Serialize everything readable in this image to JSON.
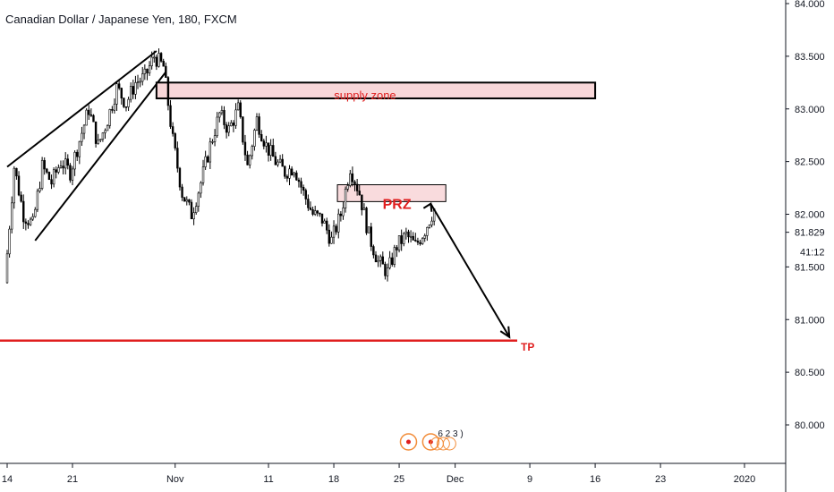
{
  "header": {
    "title": "Canadian Dollar / Japanese Yen, 180, FXCM"
  },
  "colors": {
    "up": "#ffffff",
    "down": "#000000",
    "candle_border": "#000000",
    "zone_fill": "#f8d7d9",
    "annotation_red": "#e01e1e",
    "axis": "#131722"
  },
  "chart_data": {
    "type": "candlestick",
    "title": "Canadian Dollar / Japanese Yen, 180, FXCM",
    "ylim": [
      79.7,
      84.05
    ],
    "y_ticks": [
      {
        "value": 84.0,
        "label": "84.000"
      },
      {
        "value": 83.5,
        "label": "83.500"
      },
      {
        "value": 83.0,
        "label": "83.000"
      },
      {
        "value": 82.5,
        "label": "82.500"
      },
      {
        "value": 82.0,
        "label": "82.000"
      },
      {
        "value": 81.5,
        "label": "81.500"
      },
      {
        "value": 81.0,
        "label": "81.000"
      },
      {
        "value": 80.5,
        "label": "80.500"
      },
      {
        "value": 80.0,
        "label": "80.000"
      }
    ],
    "x_ticks": [
      {
        "label": "14",
        "date": "2019-10-14"
      },
      {
        "label": "21",
        "date": "2019-10-21"
      },
      {
        "label": "Nov",
        "date": "2019-11-01"
      },
      {
        "label": "11",
        "date": "2019-11-11"
      },
      {
        "label": "18",
        "date": "2019-11-18"
      },
      {
        "label": "25",
        "date": "2019-11-25"
      },
      {
        "label": "Dec",
        "date": "2019-12-01"
      },
      {
        "label": "9",
        "date": "2019-12-09"
      },
      {
        "label": "16",
        "date": "2019-12-16"
      },
      {
        "label": "23",
        "date": "2019-12-23"
      },
      {
        "label": "2020",
        "date": "2020-01-01"
      }
    ],
    "price_path": [
      [
        "2019-10-14",
        81.35
      ],
      [
        "2019-10-15",
        82.45
      ],
      [
        "2019-10-16",
        82.0
      ],
      [
        "2019-10-17",
        81.9
      ],
      [
        "2019-10-18",
        82.45
      ],
      [
        "2019-10-19",
        82.3
      ],
      [
        "2019-10-20",
        82.5
      ],
      [
        "2019-10-21",
        82.4
      ],
      [
        "2019-10-22",
        82.7
      ],
      [
        "2019-10-23",
        83.0
      ],
      [
        "2019-10-24",
        82.65
      ],
      [
        "2019-10-25",
        82.9
      ],
      [
        "2019-10-26",
        83.2
      ],
      [
        "2019-10-27",
        83.05
      ],
      [
        "2019-10-28",
        83.25
      ],
      [
        "2019-10-29",
        83.3
      ],
      [
        "2019-10-30",
        83.5
      ],
      [
        "2019-10-31",
        83.4
      ],
      [
        "2019-11-01",
        82.7
      ],
      [
        "2019-11-02",
        82.2
      ],
      [
        "2019-11-03",
        82.0
      ],
      [
        "2019-11-04",
        82.3
      ],
      [
        "2019-11-05",
        82.65
      ],
      [
        "2019-11-06",
        82.95
      ],
      [
        "2019-11-07",
        82.8
      ],
      [
        "2019-11-08",
        83.0
      ],
      [
        "2019-11-09",
        82.45
      ],
      [
        "2019-11-10",
        82.9
      ],
      [
        "2019-11-11",
        82.65
      ],
      [
        "2019-11-12",
        82.5
      ],
      [
        "2019-11-13",
        82.4
      ],
      [
        "2019-11-14",
        82.45
      ],
      [
        "2019-11-15",
        82.2
      ],
      [
        "2019-11-16",
        82.0
      ],
      [
        "2019-11-17",
        81.95
      ],
      [
        "2019-11-18",
        81.75
      ],
      [
        "2019-11-19",
        82.0
      ],
      [
        "2019-11-20",
        82.45
      ],
      [
        "2019-11-21",
        82.2
      ],
      [
        "2019-11-22",
        81.8
      ],
      [
        "2019-11-23",
        81.55
      ],
      [
        "2019-11-24",
        81.45
      ],
      [
        "2019-11-25",
        81.7
      ],
      [
        "2019-11-26",
        81.8
      ],
      [
        "2019-11-27",
        81.7
      ],
      [
        "2019-11-28",
        81.85
      ],
      [
        "2019-11-29",
        82.05
      ]
    ],
    "last_price": {
      "value": 81.829,
      "label": "81.829"
    },
    "countdown_label": "41:12",
    "supply_zone": {
      "label": "supply zone",
      "y_top": 83.25,
      "y_bottom": 83.1,
      "x_start": "2019-10-30",
      "x_end": "2019-12-16"
    },
    "prz_zone": {
      "label": "PRZ",
      "y_top": 82.28,
      "y_bottom": 82.12,
      "x_start": "2019-11-18",
      "x_end": "2019-11-30"
    },
    "tp_line": {
      "label": "TP",
      "value": 80.8
    },
    "projection_arrow": {
      "from": [
        "2019-11-28",
        82.1
      ],
      "to": [
        "2019-12-07",
        80.8
      ]
    },
    "channel": {
      "upper": [
        [
          "2019-10-14",
          82.45
        ],
        [
          "2019-10-30",
          83.55
        ]
      ],
      "lower": [
        [
          "2019-10-17",
          81.75
        ],
        [
          "2019-10-31",
          83.35
        ]
      ]
    },
    "event_markers": [
      {
        "label": "",
        "date": "2019-11-26"
      },
      {
        "label": "6 2 3 )",
        "date": "2019-11-28"
      }
    ]
  }
}
